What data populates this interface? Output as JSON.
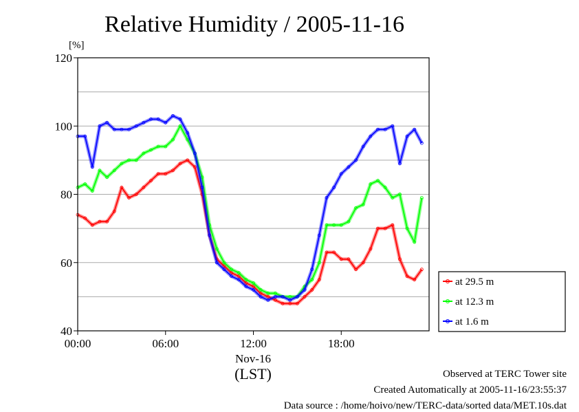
{
  "chart_data": {
    "type": "line",
    "title": "Relative Humidity / 2005-11-16",
    "ylabel": "[%]",
    "xlabel": "(LST)",
    "date_label": "Nov-16",
    "ylim": [
      40,
      120
    ],
    "y_ticks": [
      40,
      60,
      80,
      100,
      120
    ],
    "xlim": [
      0,
      24
    ],
    "x_ticks": [
      {
        "v": 0,
        "label": "00:00"
      },
      {
        "v": 6,
        "label": "06:00"
      },
      {
        "v": 12,
        "label": "12:00"
      },
      {
        "v": 18,
        "label": "18:00"
      }
    ],
    "grid": true,
    "legend_position": "right",
    "series": [
      {
        "name": "at 29.5 m",
        "color": "#ff0000",
        "x": [
          0,
          0.5,
          1,
          1.5,
          2,
          2.5,
          3,
          3.5,
          4,
          4.5,
          5,
          5.5,
          6,
          6.5,
          7,
          7.5,
          8,
          8.5,
          9,
          9.5,
          10,
          10.5,
          11,
          11.5,
          12,
          12.5,
          13,
          13.5,
          14,
          14.5,
          15,
          15.5,
          16,
          16.5,
          17,
          17.5,
          18,
          18.5,
          19,
          19.5,
          20,
          20.5,
          21,
          21.5,
          22,
          22.5,
          23,
          23.5
        ],
        "y": [
          74,
          73,
          71,
          72,
          72,
          75,
          82,
          79,
          80,
          82,
          84,
          86,
          86,
          87,
          89,
          90,
          88,
          80,
          68,
          61,
          59,
          57,
          56,
          54,
          53,
          51,
          50,
          49,
          48,
          48,
          48,
          50,
          52,
          55,
          63,
          63,
          61,
          61,
          58,
          60,
          64,
          70,
          70,
          71,
          61,
          56,
          55,
          58
        ]
      },
      {
        "name": "at 12.3 m",
        "color": "#00ff00",
        "x": [
          0,
          0.5,
          1,
          1.5,
          2,
          2.5,
          3,
          3.5,
          4,
          4.5,
          5,
          5.5,
          6,
          6.5,
          7,
          7.5,
          8,
          8.5,
          9,
          9.5,
          10,
          10.5,
          11,
          11.5,
          12,
          12.5,
          13,
          13.5,
          14,
          14.5,
          15,
          15.5,
          16,
          16.5,
          17,
          17.5,
          18,
          18.5,
          19,
          19.5,
          20,
          20.5,
          21,
          21.5,
          22,
          22.5,
          23,
          23.5
        ],
        "y": [
          82,
          83,
          81,
          87,
          85,
          87,
          89,
          90,
          90,
          92,
          93,
          94,
          94,
          96,
          100,
          96,
          92,
          85,
          71,
          64,
          60,
          58,
          57,
          55,
          54,
          52,
          51,
          51,
          50,
          50,
          50,
          53,
          55,
          60,
          71,
          71,
          71,
          72,
          76,
          77,
          83,
          84,
          82,
          79,
          80,
          70,
          66,
          79
        ]
      },
      {
        "name": "at 1.6 m",
        "color": "#0000ff",
        "x": [
          0,
          0.5,
          1,
          1.5,
          2,
          2.5,
          3,
          3.5,
          4,
          4.5,
          5,
          5.5,
          6,
          6.5,
          7,
          7.5,
          8,
          8.5,
          9,
          9.5,
          10,
          10.5,
          11,
          11.5,
          12,
          12.5,
          13,
          13.5,
          14,
          14.5,
          15,
          15.5,
          16,
          16.5,
          17,
          17.5,
          18,
          18.5,
          19,
          19.5,
          20,
          20.5,
          21,
          21.5,
          22,
          22.5,
          23,
          23.5
        ],
        "y": [
          97,
          97,
          88,
          100,
          101,
          99,
          99,
          99,
          100,
          101,
          102,
          102,
          101,
          103,
          102,
          98,
          92,
          82,
          68,
          60,
          58,
          56,
          55,
          53,
          52,
          50,
          49,
          50,
          50,
          49,
          50,
          52,
          58,
          68,
          79,
          82,
          86,
          88,
          90,
          94,
          97,
          99,
          99,
          100,
          89,
          97,
          99,
          95
        ]
      }
    ]
  },
  "footer": {
    "observed": "Observed at TERC Tower site",
    "created": "Created Automatically at 2005-11-16/23:55:37",
    "source": "Data source : /home/hoivo/new/TERC-data/sorted  data/MET.10s.dat"
  }
}
